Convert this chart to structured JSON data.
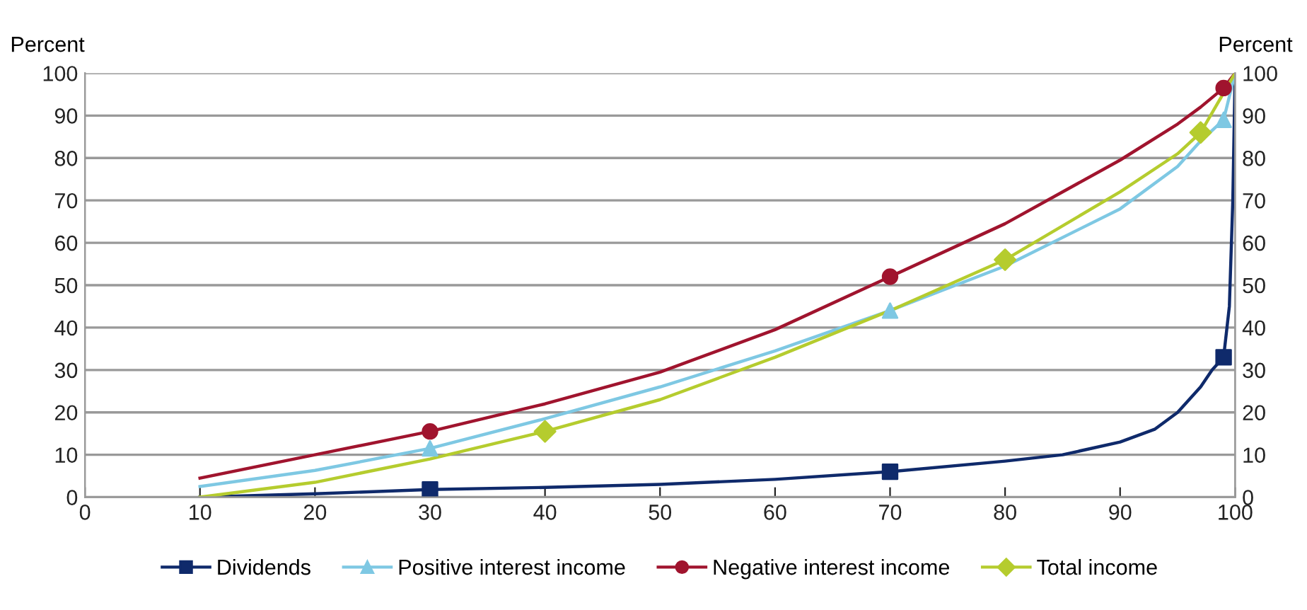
{
  "chart_data": {
    "type": "line",
    "ylabel": "Percent",
    "y2label": "Percent",
    "xlim": [
      0,
      100
    ],
    "xticks": [
      0,
      10,
      20,
      30,
      40,
      50,
      60,
      70,
      80,
      90,
      100
    ],
    "ylim": [
      0,
      100
    ],
    "yticks": [
      0,
      10,
      20,
      30,
      40,
      50,
      60,
      70,
      80,
      90,
      100
    ],
    "y2lim": [
      0,
      100
    ],
    "y2ticks": [
      0,
      10,
      20,
      30,
      40,
      50,
      60,
      70,
      80,
      90,
      100
    ],
    "grid": "y",
    "legend": "bottom",
    "series": [
      {
        "name": "Dividends",
        "color": "#0f2a6b",
        "x": [
          10,
          20,
          30,
          40,
          50,
          60,
          70,
          80,
          85,
          90,
          93,
          95,
          97,
          98,
          99,
          99.5,
          99.8,
          100
        ],
        "values": [
          0,
          0.8,
          1.8,
          2.3,
          3,
          4.2,
          6,
          8.5,
          10,
          13,
          16,
          20,
          26,
          30,
          33,
          45,
          70,
          100
        ]
      },
      {
        "type": "scatter",
        "color": "#0f2a6b",
        "marker": "square",
        "x": [
          30,
          70,
          99
        ],
        "values": [
          1.8,
          6,
          33
        ]
      },
      {
        "name": "Positive interest income",
        "color": "#7ec8e3",
        "x": [
          10,
          20,
          30,
          40,
          50,
          60,
          70,
          80,
          90,
          95,
          97,
          99,
          100
        ],
        "values": [
          2.5,
          6.3,
          11.5,
          18.5,
          26,
          34.5,
          44,
          54.5,
          68,
          78,
          84,
          89,
          100
        ]
      },
      {
        "type": "scatter",
        "color": "#7ec8e3",
        "marker": "triangle",
        "x": [
          30,
          70,
          99
        ],
        "values": [
          11.5,
          44,
          89
        ]
      },
      {
        "name": "Negative interest income",
        "color": "#a0142e",
        "x": [
          10,
          20,
          30,
          40,
          50,
          60,
          70,
          80,
          90,
          95,
          97,
          99,
          100
        ],
        "values": [
          4.5,
          10,
          15.5,
          22,
          29.5,
          39.5,
          52,
          64.5,
          79.5,
          88,
          92,
          96.5,
          100
        ]
      },
      {
        "type": "scatter",
        "color": "#a0142e",
        "marker": "circle",
        "x": [
          30,
          70,
          99
        ],
        "values": [
          15.5,
          52,
          96.5
        ]
      },
      {
        "name": "Total income",
        "color": "#b5cc2e",
        "x": [
          10,
          20,
          30,
          40,
          50,
          60,
          70,
          80,
          90,
          95,
          97,
          100
        ],
        "values": [
          0,
          3.5,
          9,
          15.5,
          23,
          33,
          44,
          56,
          72,
          81,
          86,
          100
        ]
      },
      {
        "type": "scatter",
        "color": "#b5cc2e",
        "marker": "diamond",
        "x": [
          40,
          80,
          97
        ],
        "values": [
          15.5,
          56,
          86
        ]
      }
    ]
  }
}
